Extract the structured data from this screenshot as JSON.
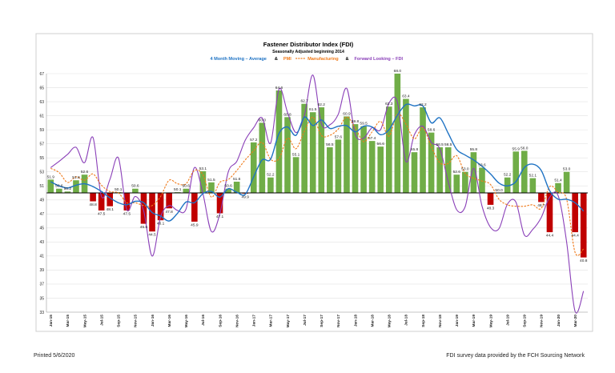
{
  "chart_data": {
    "type": "bar",
    "title": "Fastener Distributor Index (FDI)",
    "subtitle": "Seasonally Adjusted beginning 2014",
    "legend": [
      {
        "label": "4 Month Moving – Average",
        "color": "#1f73c4",
        "style": "solid"
      },
      {
        "label": "&",
        "color": "#000000",
        "style": "sep"
      },
      {
        "label": "PMI",
        "color": "#f07a1a",
        "style": "text"
      },
      {
        "label": "Manufacturing",
        "color": "#f07a1a",
        "style": "dashed"
      },
      {
        "label": "&",
        "color": "#000000",
        "style": "sep"
      },
      {
        "label": "Forward Looking – FDI",
        "color": "#8a3fb8",
        "style": "solid"
      }
    ],
    "ylim": [
      33,
      67
    ],
    "baseline": 50,
    "yticks": [
      33,
      35,
      37,
      39,
      41,
      43,
      45,
      47,
      49,
      51,
      53,
      55,
      57,
      59,
      61,
      63,
      65,
      67
    ],
    "xlabels": [
      "Jan-15",
      "Mar-15",
      "May-15",
      "Jul-15",
      "Sep-15",
      "Nov-15",
      "Jan-16",
      "Mar-16",
      "May-16",
      "Jul-16",
      "Sep-16",
      "Nov-16",
      "Jan-17",
      "Mar-17",
      "May-17",
      "Jul-17",
      "Sep-17",
      "Nov-17",
      "Jan-18",
      "Mar-18",
      "May-18",
      "Jul-18",
      "Sep-18",
      "Nov-18",
      "Jan-19",
      "Mar-19",
      "May-19",
      "Jul-19",
      "Sep-19",
      "Nov-19",
      "Jan-20",
      "Mar-20"
    ],
    "bar_labels": [
      "51.9",
      "50.6",
      "50.2",
      "51.8",
      "52.6",
      "48.8",
      "47.5",
      "48.1",
      "50.1",
      "47.5",
      "50.6",
      "45.6",
      "44.5",
      "46.1",
      "47.8",
      "50.1",
      "50.6",
      "45.9",
      "53.1",
      "51.5",
      "47.1",
      "50.6",
      "51.6",
      "49.9",
      "57.2",
      "60.0",
      "52.2",
      "64.6",
      "60.8",
      "55.1",
      "62.7",
      "61.5",
      "62.2",
      "56.5",
      "57.6",
      "60.9",
      "59.8",
      "59.5",
      "57.4",
      "56.6",
      "62.3",
      "68.0",
      "63.4",
      "55.8",
      "62.2",
      "58.6",
      "56.5",
      "56.5",
      "52.6",
      "53.0",
      "55.8",
      "53.6",
      "48.3",
      "50.0",
      "52.2",
      "55.9",
      "56.0",
      "52.1",
      "48.7",
      "44.4",
      "51.4",
      "53.0",
      "44.4",
      "40.8"
    ],
    "series": [
      {
        "name": "FDI",
        "values": [
          51.9,
          50.6,
          50.2,
          51.8,
          52.6,
          48.8,
          47.5,
          48.1,
          50.1,
          47.5,
          50.6,
          45.6,
          44.5,
          46.1,
          47.8,
          50.1,
          50.6,
          45.9,
          53.1,
          51.5,
          47.1,
          50.6,
          51.6,
          49.9,
          57.2,
          60.0,
          52.2,
          64.6,
          60.8,
          55.1,
          62.7,
          61.5,
          62.2,
          56.5,
          57.6,
          60.9,
          59.8,
          59.5,
          57.4,
          56.6,
          62.3,
          68.0,
          63.4,
          55.8,
          62.2,
          58.6,
          56.5,
          56.5,
          52.6,
          53.0,
          55.8,
          53.6,
          48.3,
          50.0,
          52.2,
          55.9,
          56.0,
          52.1,
          48.7,
          44.4,
          51.4,
          53.0,
          44.4,
          40.8
        ]
      },
      {
        "name": "4 Month Moving – Average",
        "values": [
          51.6,
          51.0,
          50.7,
          51.1,
          51.3,
          50.9,
          50.2,
          49.3,
          48.6,
          48.3,
          48.8,
          48.6,
          47.2,
          46.7,
          46.0,
          47.1,
          48.7,
          48.6,
          49.9,
          50.2,
          49.4,
          50.6,
          50.1,
          49.8,
          52.3,
          54.7,
          54.8,
          58.5,
          59.4,
          58.2,
          60.8,
          59.6,
          60.4,
          59.2,
          59.5,
          59.6,
          58.7,
          59.5,
          59.4,
          58.3,
          59.0,
          61.1,
          62.6,
          62.4,
          62.4,
          60.0,
          60.7,
          58.5,
          56.2,
          55.4,
          54.7,
          53.8,
          52.7,
          51.4,
          51.0,
          51.6,
          53.6,
          54.1,
          53.2,
          50.3,
          49.1,
          49.1,
          48.6,
          47.4
        ]
      },
      {
        "name": "PMI Manufacturing",
        "values": [
          53.5,
          52.9,
          51.5,
          52.3,
          51.8,
          52.7,
          51.1,
          50.2,
          50.0,
          48.6,
          48.6,
          48.2,
          48.2,
          49.5,
          51.8,
          51.3,
          51.3,
          53.2,
          52.6,
          49.4,
          51.5,
          51.9,
          53.2,
          54.7,
          56.0,
          57.2,
          54.8,
          54.9,
          57.8,
          56.3,
          58.8,
          60.8,
          58.2,
          58.2,
          59.1,
          60.8,
          59.3,
          57.3,
          58.7,
          60.2,
          58.1,
          61.3,
          59.8,
          57.7,
          59.3,
          56.6,
          54.3,
          54.2,
          55.3,
          52.8,
          52.1,
          51.7,
          51.2,
          49.1,
          48.3,
          48.1,
          48.1,
          48.3,
          47.8,
          50.9,
          50.1,
          49.1,
          41.5,
          42.0
        ]
      },
      {
        "name": "Forward Looking – FDI",
        "values": [
          53.6,
          54.5,
          55.5,
          56.5,
          54.3,
          57.9,
          49.5,
          51.9,
          55.0,
          47.6,
          49.5,
          47.4,
          41.0,
          46.6,
          48.2,
          47.5,
          47.7,
          53.6,
          49.9,
          44.5,
          47.0,
          53.0,
          54.5,
          57.5,
          59.3,
          60.7,
          57.1,
          64.8,
          61.5,
          58.6,
          61.1,
          66.8,
          59.9,
          59.7,
          61.2,
          64.9,
          58.4,
          57.8,
          59.3,
          59.0,
          62.8,
          62.9,
          54.5,
          58.3,
          59.5,
          57.2,
          56.3,
          51.6,
          47.6,
          48.0,
          53.5,
          48.1,
          45.1,
          44.9,
          48.4,
          48.7,
          44.0,
          44.8,
          46.5,
          49.4,
          49.6,
          43.0,
          33.1,
          36.0
        ]
      }
    ]
  },
  "footer": {
    "printed": "Printed 5/6/2020",
    "source": "FDI survey data provided by the FCH Sourcing Network"
  }
}
